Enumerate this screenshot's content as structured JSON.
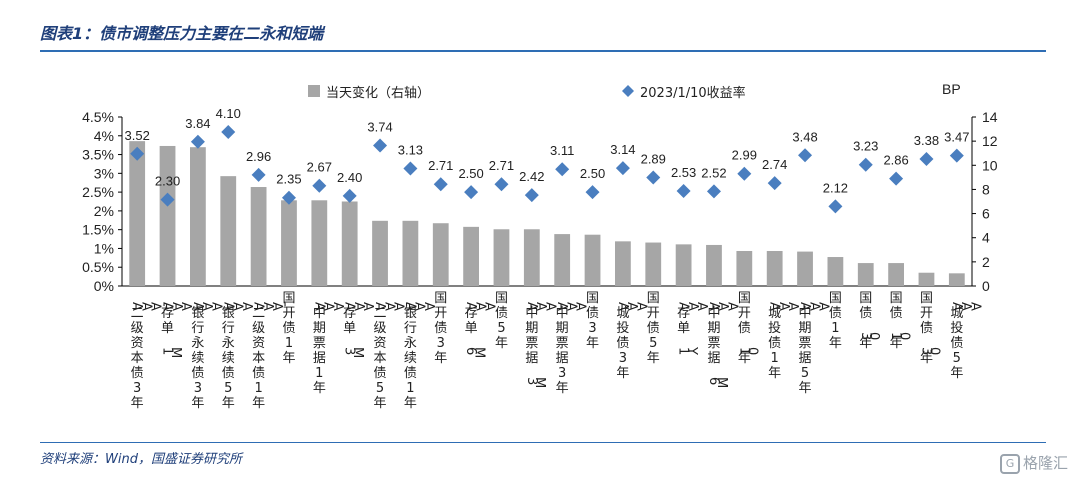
{
  "header": {
    "title": "图表1：债市调整压力主要在二永和短端"
  },
  "footer": {
    "source": "资料来源：Wind，国盛证券研究所",
    "watermark": "格隆汇"
  },
  "colors": {
    "bar": "#a6a6a6",
    "marker": "#4a7ebf",
    "rule": "#2e6db4",
    "title": "#1f3f7a"
  },
  "chart_data": {
    "type": "bar",
    "title": "",
    "legend_position": "top",
    "categories": [
      "AAA-二级资本债3年",
      "AAA存单1M",
      "AAA银行永续债3年",
      "AAA银行永续债5年",
      "AAA-二级资本债1年",
      "国开债1年",
      "AAA中期票据1年",
      "AAA存单3M",
      "AAA-二级资本债5年",
      "AAA银行永续债1年",
      "国开债3年",
      "AAA存单6M",
      "国债5年",
      "AAA中期票据3M",
      "AAA中期票据3年",
      "国债3年",
      "AAA城投债3年",
      "国开债5年",
      "AAA存单1Y",
      "AAA中期票据6M",
      "国开债10年",
      "AAA城投债1年",
      "AAA中期票据5年",
      "国债1年",
      "国债30年",
      "国债10年",
      "国开债30年",
      "AAA城投债5年"
    ],
    "series": [
      {
        "name": "当天变化（右轴）",
        "axis": "right",
        "type": "bar",
        "values": [
          12,
          11.6,
          11.5,
          9.1,
          8.2,
          7.1,
          7.1,
          7.0,
          5.4,
          5.4,
          5.2,
          4.9,
          4.7,
          4.7,
          4.3,
          4.25,
          3.7,
          3.6,
          3.45,
          3.4,
          2.9,
          2.9,
          2.85,
          2.4,
          1.9,
          1.9,
          1.1,
          1.05
        ]
      },
      {
        "name": "2023/1/10收益率",
        "axis": "left",
        "type": "scatter",
        "values": [
          3.52,
          2.3,
          3.84,
          4.1,
          2.96,
          2.35,
          2.67,
          2.4,
          3.74,
          3.13,
          2.71,
          2.5,
          2.71,
          2.42,
          3.11,
          2.5,
          3.14,
          2.89,
          2.53,
          2.52,
          2.99,
          2.74,
          3.48,
          2.12,
          3.23,
          2.86,
          3.38,
          3.47
        ],
        "labels": [
          "3.52",
          "2.30",
          "3.84",
          "4.10",
          "2.96",
          "2.35",
          "2.67",
          "2.40",
          "3.74",
          "3.13",
          "2.71",
          "2.50",
          "2.71",
          "2.42",
          "3.11",
          "2.50",
          "3.14",
          "2.89",
          "2.53",
          "2.52",
          "2.99",
          "2.74",
          "3.48",
          "2.12",
          "3.23",
          "2.86",
          "3.38",
          "3.47"
        ]
      }
    ],
    "ylim_left": [
      0,
      4.5
    ],
    "yticks_left": [
      "0%",
      "0.5%",
      "1%",
      "1.5%",
      "2%",
      "2.5%",
      "3%",
      "3.5%",
      "4%",
      "4.5%"
    ],
    "ylim_right": [
      0,
      14
    ],
    "yticks_right": [
      "0",
      "2",
      "4",
      "6",
      "8",
      "10",
      "12",
      "14"
    ],
    "ylabel_right": "BP",
    "grid": false
  }
}
